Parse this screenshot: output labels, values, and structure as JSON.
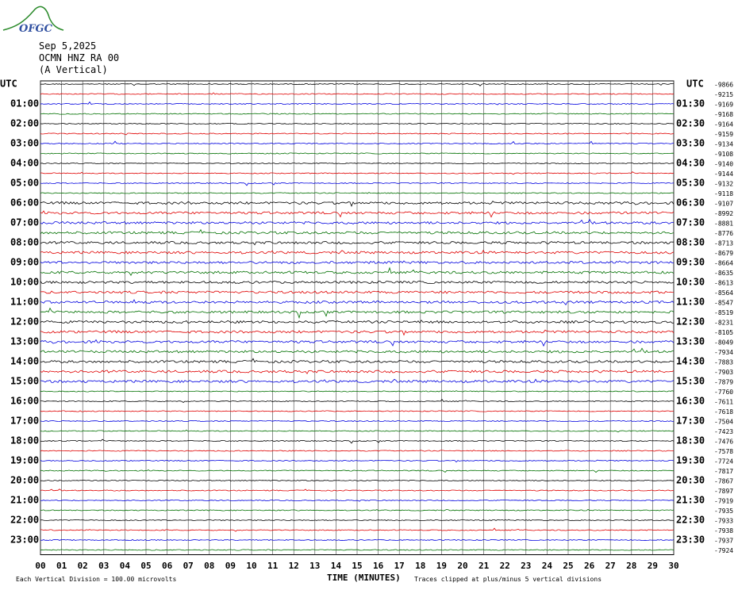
{
  "header": {
    "logo": "OFGC",
    "date": "Sep 5,2025",
    "station": "OCMN HNZ RA 00",
    "component": "(A Vertical)"
  },
  "left_labels": [
    "UTC",
    "01:00",
    "02:00",
    "03:00",
    "04:00",
    "05:00",
    "06:00",
    "07:00",
    "08:00",
    "09:00",
    "10:00",
    "11:00",
    "12:00",
    "13:00",
    "14:00",
    "15:00",
    "16:00",
    "17:00",
    "18:00",
    "19:00",
    "20:00",
    "21:00",
    "22:00",
    "23:00"
  ],
  "right_labels": [
    "UTC",
    "01:30",
    "02:30",
    "03:30",
    "04:30",
    "05:30",
    "06:30",
    "07:30",
    "08:30",
    "09:30",
    "10:30",
    "11:30",
    "12:30",
    "13:30",
    "14:30",
    "15:30",
    "16:30",
    "17:30",
    "18:30",
    "19:30",
    "20:30",
    "21:30",
    "22:30",
    "23:30"
  ],
  "offsets": [
    -9866,
    -9215,
    -9169,
    -9168,
    -9164,
    -9159,
    -9134,
    -9108,
    -9140,
    -9144,
    -9132,
    -9118,
    -9107,
    -8992,
    -8881,
    -8776,
    -8713,
    -8679,
    -8664,
    -8635,
    -8613,
    -8564,
    -8547,
    -8519,
    -8231,
    -8105,
    -8049,
    -7934,
    -7883,
    -7903,
    -7879,
    -7760,
    -7611,
    -7618,
    -7504,
    -7423,
    -7476,
    -7578,
    -7724,
    -7817,
    -7867,
    -7897,
    -7919,
    -7935,
    -7933,
    -7938,
    -7937,
    -7924
  ],
  "x_labels": [
    "00",
    "01",
    "02",
    "03",
    "04",
    "05",
    "06",
    "07",
    "08",
    "09",
    "10",
    "11",
    "12",
    "13",
    "14",
    "15",
    "16",
    "17",
    "18",
    "19",
    "20",
    "21",
    "22",
    "23",
    "24",
    "25",
    "26",
    "27",
    "28",
    "29",
    "30"
  ],
  "x_title": "TIME (MINUTES)",
  "footer_left": "Each Vertical Division =  100.00 microvolts",
  "footer_right": "Traces clipped at plus/minus 5 vertical divisions",
  "trace_colors": [
    "#000000",
    "#e00000",
    "#0000e0",
    "#007000"
  ]
}
